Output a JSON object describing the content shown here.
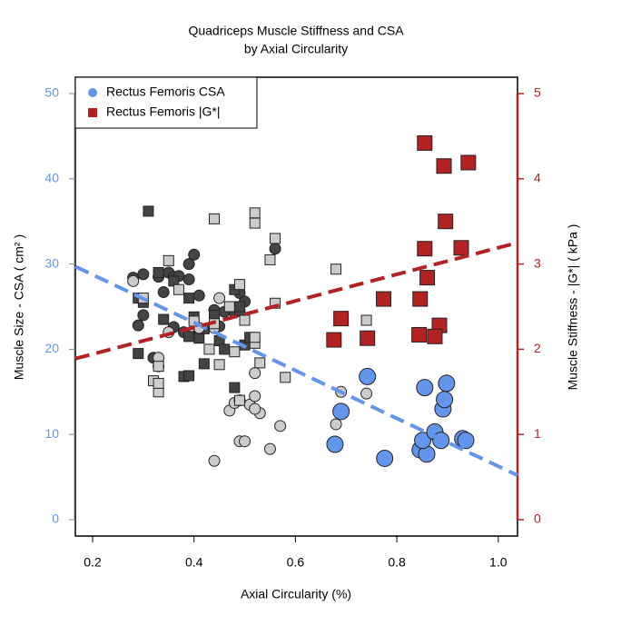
{
  "chart_data": {
    "type": "scatter",
    "title": [
      "Quadriceps Muscle Stiffness and CSA",
      "by Axial Circularity"
    ],
    "x_label": "Axial Circularity (%)",
    "y_label": "Muscle Size - CSA ( cm² )",
    "y2_label": "Muscle Stiffness - |G*| ( kPa )",
    "xlim": [
      0.166,
      1.038
    ],
    "ylim": [
      -1.92,
      51.92
    ],
    "y2lim": [
      -0.192,
      5.192
    ],
    "xticks": [
      0.2,
      0.4,
      0.6,
      0.8,
      {
        "value": 1,
        "label": "1.0"
      }
    ],
    "yticks": [
      0,
      10,
      20,
      30,
      40,
      50
    ],
    "y2ticks": [
      0,
      1,
      2,
      3,
      4,
      5
    ],
    "y_color": "#6495ed",
    "y2_color": "#b22222",
    "legend": "top-left",
    "series": [
      {
        "color": "#444444",
        "marker": "circle",
        "axis": "y",
        "x": [
          0.28,
          0.3,
          0.33,
          0.35,
          0.36,
          0.37,
          0.39,
          0.4,
          0.39,
          0.34,
          0.29,
          0.3,
          0.36,
          0.38,
          0.41,
          0.41,
          0.44,
          0.45,
          0.46,
          0.48,
          0.49,
          0.5,
          0.56,
          0.32,
          0.49
        ],
        "values": [
          28.4,
          28.8,
          28.5,
          29.0,
          28.5,
          28.6,
          30.0,
          31.1,
          28.2,
          26.7,
          22.8,
          24.0,
          22.6,
          22.0,
          26.3,
          22.3,
          24.6,
          22.7,
          24.4,
          24.3,
          26.6,
          25.6,
          31.8,
          19.0,
          24.5
        ]
      },
      {
        "color": "#444444",
        "marker": "square",
        "axis": "y",
        "x": [
          0.31,
          0.29,
          0.29,
          0.3,
          0.33,
          0.34,
          0.36,
          0.38,
          0.39,
          0.39,
          0.39,
          0.41,
          0.42,
          0.4,
          0.42,
          0.44,
          0.45,
          0.46,
          0.48,
          0.49,
          0.5,
          0.51,
          0.48
        ],
        "values": [
          36.2,
          26.0,
          19.5,
          25.5,
          29.0,
          23.5,
          28.0,
          16.8,
          16.9,
          26.0,
          21.5,
          21.3,
          18.3,
          23.8,
          22.4,
          24.0,
          21.0,
          20.0,
          15.5,
          25.0,
          20.5,
          21.4,
          27.0
        ]
      },
      {
        "color": "#cccccc",
        "marker": "circle",
        "axis": "y",
        "x": [
          0.28,
          0.33,
          0.33,
          0.35,
          0.44,
          0.44,
          0.47,
          0.48,
          0.49,
          0.5,
          0.49,
          0.51,
          0.52,
          0.52,
          0.53,
          0.52,
          0.55,
          0.57,
          0.68,
          0.69,
          0.74,
          0.45,
          0.41
        ],
        "values": [
          28.0,
          18.0,
          19.0,
          22.0,
          22.5,
          6.9,
          12.8,
          13.7,
          9.2,
          9.2,
          14.0,
          13.5,
          14.5,
          17.2,
          12.5,
          13.0,
          8.3,
          11.0,
          11.2,
          15.0,
          14.8,
          26.0,
          22.5
        ]
      },
      {
        "color": "#cccccc",
        "marker": "square",
        "axis": "y",
        "x": [
          0.3,
          0.33,
          0.32,
          0.33,
          0.35,
          0.37,
          0.4,
          0.43,
          0.44,
          0.44,
          0.45,
          0.47,
          0.48,
          0.49,
          0.5,
          0.52,
          0.52,
          0.52,
          0.52,
          0.53,
          0.56,
          0.55,
          0.56,
          0.58,
          0.68,
          0.74,
          0.33,
          0.49
        ],
        "values": [
          26.0,
          15.0,
          16.3,
          18.0,
          30.4,
          27.0,
          23.3,
          20.0,
          35.3,
          23.0,
          18.2,
          25.0,
          19.7,
          27.6,
          23.4,
          20.7,
          21.4,
          34.8,
          36.0,
          18.4,
          33.0,
          30.5,
          25.4,
          16.7,
          29.4,
          23.4,
          16.0,
          14.0
        ]
      },
      {
        "name": "Rectus Femoris CSA",
        "color": "#6495ed",
        "marker": "circle",
        "size": "big",
        "axis": "y",
        "x": [
          0.678,
          0.69,
          0.742,
          0.776,
          0.855,
          0.846,
          0.859,
          0.851,
          0.875,
          0.887,
          0.891,
          0.894,
          0.898,
          0.93,
          0.936
        ],
        "values": [
          8.85,
          12.7,
          16.8,
          7.2,
          15.5,
          8.2,
          7.7,
          9.3,
          10.3,
          9.3,
          13.0,
          14.1,
          16.0,
          9.5,
          9.3
        ]
      },
      {
        "name": "Rectus Femoris |G*|",
        "color": "#b22222",
        "marker": "square",
        "size": "big",
        "axis": "y2",
        "x": [
          0.855,
          0.941,
          0.893,
          0.896,
          0.855,
          0.927,
          0.86,
          0.774,
          0.846,
          0.69,
          0.884,
          0.676,
          0.742,
          0.844,
          0.875
        ],
        "values": [
          4.42,
          4.19,
          4.15,
          3.5,
          3.18,
          3.19,
          2.84,
          2.59,
          2.59,
          2.36,
          2.28,
          2.11,
          2.13,
          2.17,
          2.15
        ]
      }
    ],
    "trend_lines": [
      {
        "color": "#6495ed",
        "axis": "y",
        "x": [
          0.166,
          1.038
        ],
        "values": [
          29.7,
          5.2
        ]
      },
      {
        "color": "#b22222",
        "axis": "y2",
        "x": [
          0.166,
          1.038
        ],
        "values": [
          1.89,
          3.25
        ]
      }
    ]
  }
}
